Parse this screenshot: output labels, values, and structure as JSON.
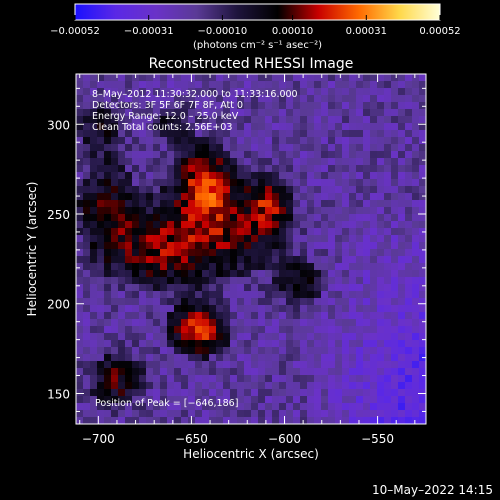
{
  "colorbar": {
    "tick_labels": [
      "−0.00052",
      "−0.00031",
      "−0.00010",
      "0.00010",
      "0.00031",
      "0.00052"
    ],
    "tick_values": [
      -0.00052,
      -0.00031,
      -0.0001,
      0.0001,
      0.00031,
      0.00052
    ],
    "units_label": "(photons cm⁻² s⁻¹ asec⁻²)"
  },
  "plot": {
    "title": "Reconstructed RHESSI Image",
    "annotations": [
      "8–May–2012 11:30:32.000 to 11:33:16.000",
      "Detectors: 3F 5F 6F 7F 8F, Att 0",
      "Energy Range: 12.0 – 25.0 keV",
      "Clean     Total counts: 2.56E+03"
    ],
    "peak_text": "Position of Peak = [−646,186]"
  },
  "footer": {
    "timestamp": "10–May–2022 14:15"
  },
  "colors": {
    "colormap": [
      "#1a10ff",
      "#5a28e6",
      "#6a32c8",
      "#5a3a96",
      "#1e143c",
      "#000000",
      "#c80000",
      "#ff6a00",
      "#ffd84a",
      "#ffffd8"
    ],
    "background": "#000000",
    "text": "#ffffff"
  },
  "chart_data": {
    "type": "heatmap",
    "title": "Reconstructed RHESSI Image",
    "xlabel": "Heliocentric X (arcsec)",
    "ylabel": "Heliocentric Y (arcsec)",
    "xlim": [
      -712,
      -524
    ],
    "ylim": [
      133,
      328
    ],
    "xticks": [
      -700,
      -650,
      -600,
      -550
    ],
    "yticks": [
      150,
      200,
      250,
      300
    ],
    "colorbar_range": [
      -0.00052,
      0.00052
    ],
    "peak": {
      "x": -646,
      "y": 186
    },
    "sources": [
      {
        "x": -643,
        "y": 268,
        "sx": 9,
        "sy": 12,
        "amp": 1.35
      },
      {
        "x": -635,
        "y": 242,
        "sx": 20,
        "sy": 17,
        "amp": 1.05
      },
      {
        "x": -646,
        "y": 186,
        "sx": 9,
        "sy": 9,
        "amp": 1.5
      },
      {
        "x": -668,
        "y": 230,
        "sx": 15,
        "sy": 13,
        "amp": 0.85
      },
      {
        "x": -608,
        "y": 256,
        "sx": 7,
        "sy": 10,
        "amp": 1.0
      },
      {
        "x": -592,
        "y": 212,
        "sx": 9,
        "sy": 9,
        "amp": 0.6
      },
      {
        "x": -695,
        "y": 250,
        "sx": 11,
        "sy": 18,
        "amp": 0.8
      },
      {
        "x": -690,
        "y": 158,
        "sx": 10,
        "sy": 10,
        "amp": 0.75
      },
      {
        "x": -700,
        "y": 298,
        "sx": 8,
        "sy": 10,
        "amp": 0.55
      },
      {
        "x": -660,
        "y": 300,
        "sx": 8,
        "sy": 8,
        "amp": 0.5
      }
    ]
  }
}
